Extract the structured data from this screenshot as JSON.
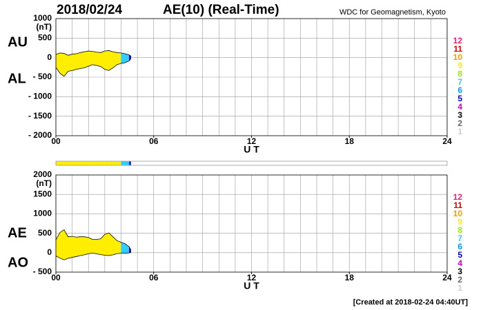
{
  "date": "2018/02/24",
  "title": "AE(10) (Real-Time)",
  "source": "WDC for Geomagnetism, Kyoto",
  "footer": "[Created at 2018-02-24 04:40UT]",
  "legend": {
    "labels": [
      "12",
      "11",
      "10",
      "9",
      "8",
      "7",
      "6",
      "5",
      "4",
      "3",
      "2",
      "1"
    ],
    "colors": [
      "#e8227a",
      "#e00000",
      "#ff9900",
      "#ffee00",
      "#99ee00",
      "#33ccff",
      "#0099ff",
      "#0000cc",
      "#cc00cc",
      "#000000",
      "#666666",
      "#cccccc"
    ]
  },
  "chart_data": [
    {
      "type": "area",
      "unit": "(nT)",
      "xlabel": "U T",
      "x": [
        0,
        0.25,
        0.5,
        0.75,
        1,
        1.25,
        1.5,
        1.75,
        2,
        2.25,
        2.5,
        2.75,
        3,
        3.25,
        3.5,
        3.75,
        4,
        4.25,
        4.5,
        4.6
      ],
      "xlim": [
        0,
        24
      ],
      "xticks": [
        {
          "value": 0,
          "label": "00"
        },
        {
          "value": 6,
          "label": "06"
        },
        12,
        18,
        24
      ],
      "ylim": [
        -2000,
        1000
      ],
      "yticks": [
        1000,
        500,
        0,
        {
          "value": -500,
          "label": "- 500"
        },
        {
          "value": -1000,
          "label": "- 1000"
        },
        {
          "value": -1500,
          "label": "- 1500"
        },
        {
          "value": -2000,
          "label": "- 2000"
        }
      ],
      "grid": true,
      "stations": [
        9,
        9,
        9,
        9,
        9,
        9,
        9,
        9,
        9,
        9,
        9,
        9,
        9,
        9,
        9,
        9,
        7,
        7,
        5,
        4
      ],
      "series": [
        {
          "name": "AU",
          "color": "#000000",
          "values": [
            80,
            120,
            110,
            60,
            90,
            100,
            130,
            150,
            170,
            160,
            140,
            130,
            170,
            180,
            150,
            130,
            120,
            100,
            70,
            40
          ]
        },
        {
          "name": "AL",
          "color": "#000000",
          "values": [
            -250,
            -400,
            -480,
            -350,
            -330,
            -300,
            -280,
            -260,
            -220,
            -180,
            -200,
            -230,
            -300,
            -330,
            -260,
            -180,
            -150,
            -130,
            -80,
            -30
          ]
        }
      ]
    },
    {
      "type": "area",
      "unit": "(nT)",
      "xlabel": "U T",
      "x": [
        0,
        0.25,
        0.5,
        0.75,
        1,
        1.25,
        1.5,
        1.75,
        2,
        2.25,
        2.5,
        2.75,
        3,
        3.25,
        3.5,
        3.75,
        4,
        4.25,
        4.5,
        4.6
      ],
      "xlim": [
        0,
        24
      ],
      "xticks": [
        {
          "value": 0,
          "label": "00"
        },
        {
          "value": 6,
          "label": "06"
        },
        12,
        18,
        24
      ],
      "ylim": [
        -500,
        2000
      ],
      "yticks": [
        2000,
        1500,
        1000,
        500,
        0,
        {
          "value": -500,
          "label": "- 500"
        }
      ],
      "grid": true,
      "stations": [
        9,
        9,
        9,
        9,
        9,
        9,
        9,
        9,
        9,
        9,
        9,
        9,
        9,
        9,
        9,
        9,
        7,
        7,
        5,
        4
      ],
      "series": [
        {
          "name": "AE",
          "color": "#000000",
          "values": [
            330,
            520,
            590,
            410,
            420,
            400,
            410,
            410,
            390,
            340,
            340,
            360,
            470,
            510,
            410,
            310,
            270,
            230,
            150,
            70
          ]
        },
        {
          "name": "AO",
          "color": "#000000",
          "values": [
            -85,
            -140,
            -185,
            -145,
            -120,
            -100,
            -75,
            -55,
            -25,
            -10,
            -30,
            -50,
            -65,
            -75,
            -55,
            -25,
            -15,
            -15,
            -5,
            5
          ]
        }
      ]
    }
  ]
}
